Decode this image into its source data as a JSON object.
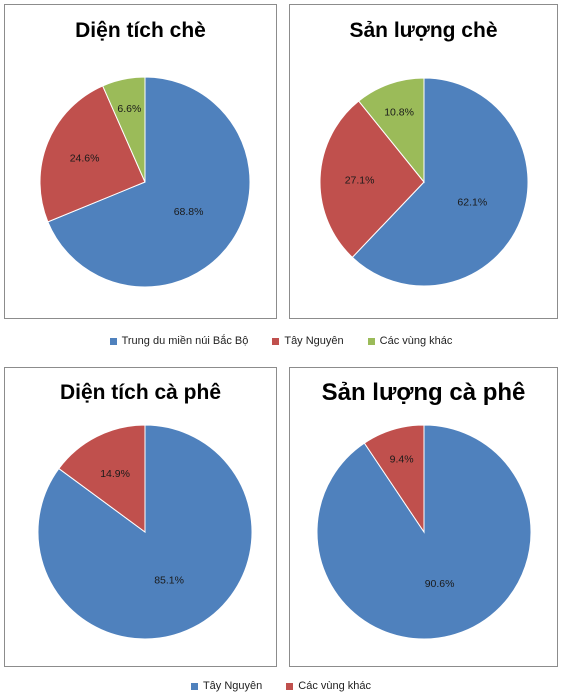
{
  "colors": {
    "blue": "#4f81bd",
    "red": "#c0504d",
    "green": "#9bbb59"
  },
  "legend_top": [
    {
      "label": "Trung du miền núi Bắc Bộ",
      "color": "#4f81bd"
    },
    {
      "label": "Tây Nguyên",
      "color": "#c0504d"
    },
    {
      "label": "Các vùng khác",
      "color": "#9bbb59"
    }
  ],
  "legend_bottom": [
    {
      "label": "Tây Nguyên",
      "color": "#4f81bd"
    },
    {
      "label": "Các vùng khác",
      "color": "#c0504d"
    }
  ],
  "chart_data": [
    {
      "type": "pie",
      "title": "Diện tích chè",
      "categories": [
        "Trung du miền núi Bắc Bộ",
        "Tây Nguyên",
        "Các vùng khác"
      ],
      "values": [
        68.8,
        24.6,
        6.6
      ],
      "labels": [
        "68.8%",
        "24.6%",
        "6.6%"
      ],
      "colors": [
        "#4f81bd",
        "#c0504d",
        "#9bbb59"
      ]
    },
    {
      "type": "pie",
      "title": "Sản lượng chè",
      "categories": [
        "Trung du miền núi Bắc Bộ",
        "Tây Nguyên",
        "Các vùng khác"
      ],
      "values": [
        62.1,
        27.1,
        10.8
      ],
      "labels": [
        "62.1%",
        "27.1%",
        "10.8%"
      ],
      "colors": [
        "#4f81bd",
        "#c0504d",
        "#9bbb59"
      ]
    },
    {
      "type": "pie",
      "title": "Diện tích cà phê",
      "categories": [
        "Tây Nguyên",
        "Các vùng khác"
      ],
      "values": [
        85.1,
        14.9
      ],
      "labels": [
        "85.1%",
        "14.9%"
      ],
      "colors": [
        "#4f81bd",
        "#c0504d"
      ]
    },
    {
      "type": "pie",
      "title": "Sản lượng cà phê",
      "categories": [
        "Tây Nguyên",
        "Các vùng khác"
      ],
      "values": [
        90.6,
        9.4
      ],
      "labels": [
        "90.6%",
        "9.4%"
      ],
      "colors": [
        "#4f81bd",
        "#c0504d"
      ]
    }
  ]
}
